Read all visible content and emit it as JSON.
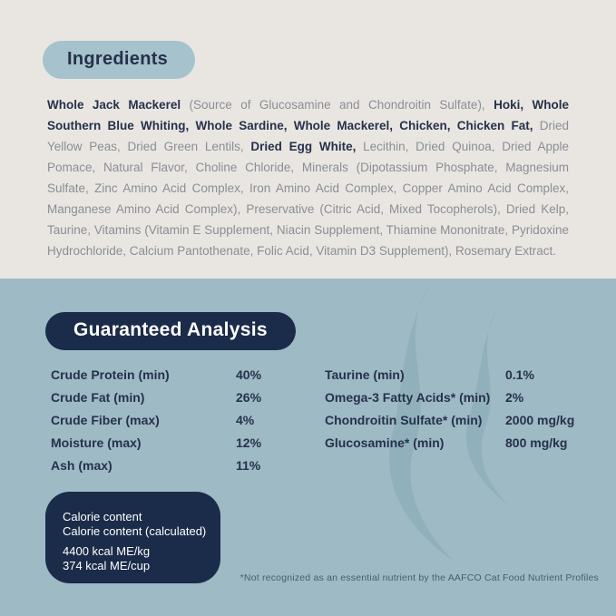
{
  "ingredients": {
    "heading": "Ingredients",
    "segments": [
      {
        "bold": true,
        "text": "Whole Jack Mackerel"
      },
      {
        "bold": false,
        "text": " (Source of Glucosamine and Chondroitin Sulfate), "
      },
      {
        "bold": true,
        "text": "Hoki, Whole Southern Blue Whiting, Whole Sardine, Whole Mackerel, Chicken, Chicken Fat,"
      },
      {
        "bold": false,
        "text": " Dried Yellow Peas, Dried Green Lentils, "
      },
      {
        "bold": true,
        "text": "Dried Egg White,"
      },
      {
        "bold": false,
        "text": " Lecithin, Dried Quinoa, Dried Apple Pomace, Natural Flavor, Choline Chloride, Minerals (Dipotassium Phosphate, Magnesium Sulfate, Zinc Amino Acid Complex, Iron Amino Acid Complex, Copper Amino Acid Complex, Manganese Amino Acid Complex), Preservative (Citric Acid, Mixed Tocopherols), Dried Kelp, Taurine, Vitamins (Vitamin E Supplement, Niacin Supplement, Thiamine Mononitrate, Pyridoxine Hydrochloride, Calcium Pantothenate, Folic Acid, Vitamin D3 Supplement), Rosemary Extract."
      }
    ]
  },
  "guaranteed_analysis": {
    "heading": "Guaranteed Analysis",
    "left_rows": [
      {
        "label": "Crude Protein (min)",
        "value": "40%"
      },
      {
        "label": "Crude Fat (min)",
        "value": "26%"
      },
      {
        "label": "Crude Fiber (max)",
        "value": "4%"
      },
      {
        "label": "Moisture (max)",
        "value": "12%"
      },
      {
        "label": "Ash (max)",
        "value": "11%"
      }
    ],
    "right_rows": [
      {
        "label": "Taurine (min)",
        "value": "0.1%"
      },
      {
        "label": "Omega-3 Fatty Acids* (min)",
        "value": "2%"
      },
      {
        "label": "Chondroitin Sulfate* (min)",
        "value": "2000 mg/kg"
      },
      {
        "label": "Glucosamine* (min)",
        "value": "800 mg/kg"
      }
    ],
    "calorie_box": {
      "line1": "Calorie content",
      "line2": "Calorie content (calculated)",
      "line3": "4400 kcal ME/kg",
      "line4": "374 kcal ME/cup"
    },
    "footnote": "*Not recognized as an essential nutrient by the AAFCO Cat Food Nutrient Profiles"
  },
  "colors": {
    "top_bg": "#e9e6e2",
    "bottom_bg": "#9dbac5",
    "pill_light": "#a6c2cc",
    "navy": "#1a2c49",
    "text_navy": "#27314a",
    "text_gray": "#8b8e94",
    "footnote_color": "#46606f",
    "watermark": "#7fa2b0"
  }
}
